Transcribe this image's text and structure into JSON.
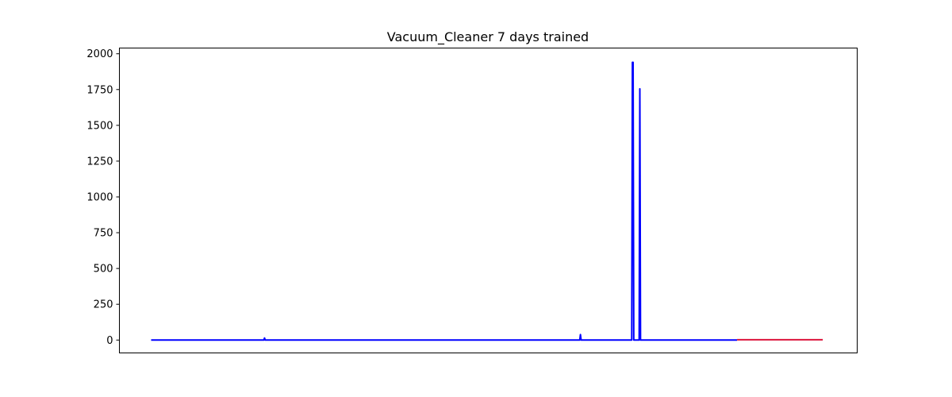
{
  "chart_data": {
    "type": "line",
    "title": "Vacuum_Cleaner 7 days trained",
    "xlabel": "",
    "ylabel": "",
    "ylim": [
      -90,
      2040
    ],
    "yticks": [
      0,
      250,
      500,
      750,
      1000,
      1250,
      1500,
      1750,
      2000
    ],
    "ytick_labels": [
      "0",
      "250",
      "500",
      "750",
      "1000",
      "1250",
      "1500",
      "1750",
      "2000"
    ],
    "xlim": [
      -47,
      1046
    ],
    "x_axis_ticks_shown": false,
    "grid": false,
    "legend": "none",
    "series": [
      {
        "color": "#0000ff",
        "points": [
          [
            0,
            0
          ],
          [
            167,
            0
          ],
          [
            168,
            14
          ],
          [
            169,
            0
          ],
          [
            635,
            0
          ],
          [
            636,
            38
          ],
          [
            637,
            0
          ],
          [
            712,
            0
          ],
          [
            713,
            1940
          ],
          [
            714,
            1940
          ],
          [
            715,
            0
          ],
          [
            723,
            0
          ],
          [
            724,
            1755
          ],
          [
            725,
            0
          ],
          [
            868,
            0
          ]
        ]
      },
      {
        "color": "#dc143c",
        "points": [
          [
            868,
            2
          ],
          [
            995,
            2
          ]
        ]
      }
    ]
  }
}
